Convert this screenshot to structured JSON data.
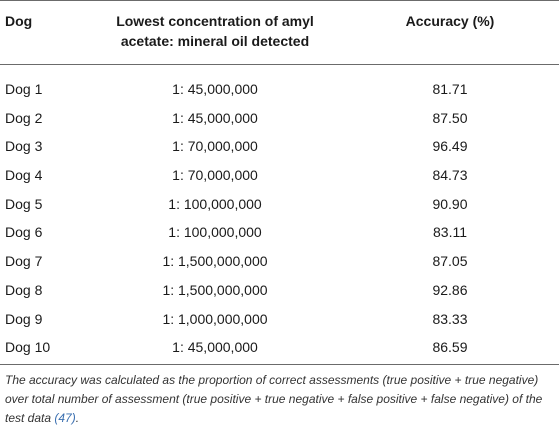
{
  "table": {
    "headers": {
      "dog": "Dog",
      "concentration": "Lowest concentration of amyl acetate: mineral oil detected",
      "accuracy": "Accuracy (%)"
    },
    "rows": [
      {
        "dog": "Dog 1",
        "concentration": "1: 45,000,000",
        "accuracy": "81.71"
      },
      {
        "dog": "Dog 2",
        "concentration": "1: 45,000,000",
        "accuracy": "87.50"
      },
      {
        "dog": "Dog 3",
        "concentration": "1: 70,000,000",
        "accuracy": "96.49"
      },
      {
        "dog": "Dog 4",
        "concentration": "1: 70,000,000",
        "accuracy": "84.73"
      },
      {
        "dog": "Dog 5",
        "concentration": "1: 100,000,000",
        "accuracy": "90.90"
      },
      {
        "dog": "Dog 6",
        "concentration": "1: 100,000,000",
        "accuracy": "83.11"
      },
      {
        "dog": "Dog 7",
        "concentration": "1: 1,500,000,000",
        "accuracy": "87.05"
      },
      {
        "dog": "Dog 8",
        "concentration": "1: 1,500,000,000",
        "accuracy": "92.86"
      },
      {
        "dog": "Dog 9",
        "concentration": "1: 1,000,000,000",
        "accuracy": "83.33"
      },
      {
        "dog": "Dog 10",
        "concentration": "1: 45,000,000",
        "accuracy": "86.59"
      }
    ]
  },
  "footnote": {
    "text": "The accuracy was calculated as the proportion of correct assessments (true positive + true negative) over total number of assessment (true positive + true negative + false positive + false negative) of the test data ",
    "ref": "(47)",
    "end": "."
  }
}
